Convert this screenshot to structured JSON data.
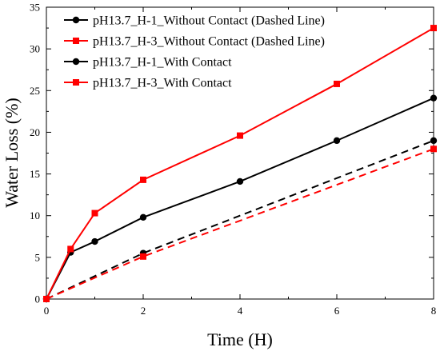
{
  "chart_data": {
    "type": "line",
    "xlabel": "Time (H)",
    "ylabel": "Water Loss (%)",
    "xlim": [
      0,
      8
    ],
    "ylim": [
      0,
      35
    ],
    "xticks": [
      0,
      2,
      4,
      6,
      8
    ],
    "yticks": [
      0,
      5,
      10,
      15,
      20,
      25,
      30,
      35
    ],
    "grid": false,
    "legend_position": "top-left",
    "series": [
      {
        "name": "pH13.7_H-1_Without Contact (Dashed Line)",
        "color": "#000000",
        "marker": "circle",
        "line_style": "dashed",
        "x": [
          0,
          2,
          8
        ],
        "y": [
          0,
          5.5,
          19.0
        ]
      },
      {
        "name": "pH13.7_H-3_Without Contact (Dashed Line)",
        "color": "#ff0000",
        "marker": "square",
        "line_style": "dashed",
        "x": [
          0,
          2,
          8
        ],
        "y": [
          0,
          5.1,
          18.0
        ]
      },
      {
        "name": "pH13.7_H-1_With Contact",
        "color": "#000000",
        "marker": "circle",
        "line_style": "solid",
        "x": [
          0,
          0.5,
          1,
          2,
          4,
          6,
          8
        ],
        "y": [
          0,
          5.6,
          6.9,
          9.8,
          14.1,
          19.0,
          24.1
        ]
      },
      {
        "name": "pH13.7_H-3_With Contact",
        "color": "#ff0000",
        "marker": "square",
        "line_style": "solid",
        "x": [
          0,
          0.5,
          1,
          2,
          4,
          6,
          8
        ],
        "y": [
          0,
          6.0,
          10.3,
          14.3,
          19.6,
          25.8,
          32.5
        ]
      }
    ]
  }
}
